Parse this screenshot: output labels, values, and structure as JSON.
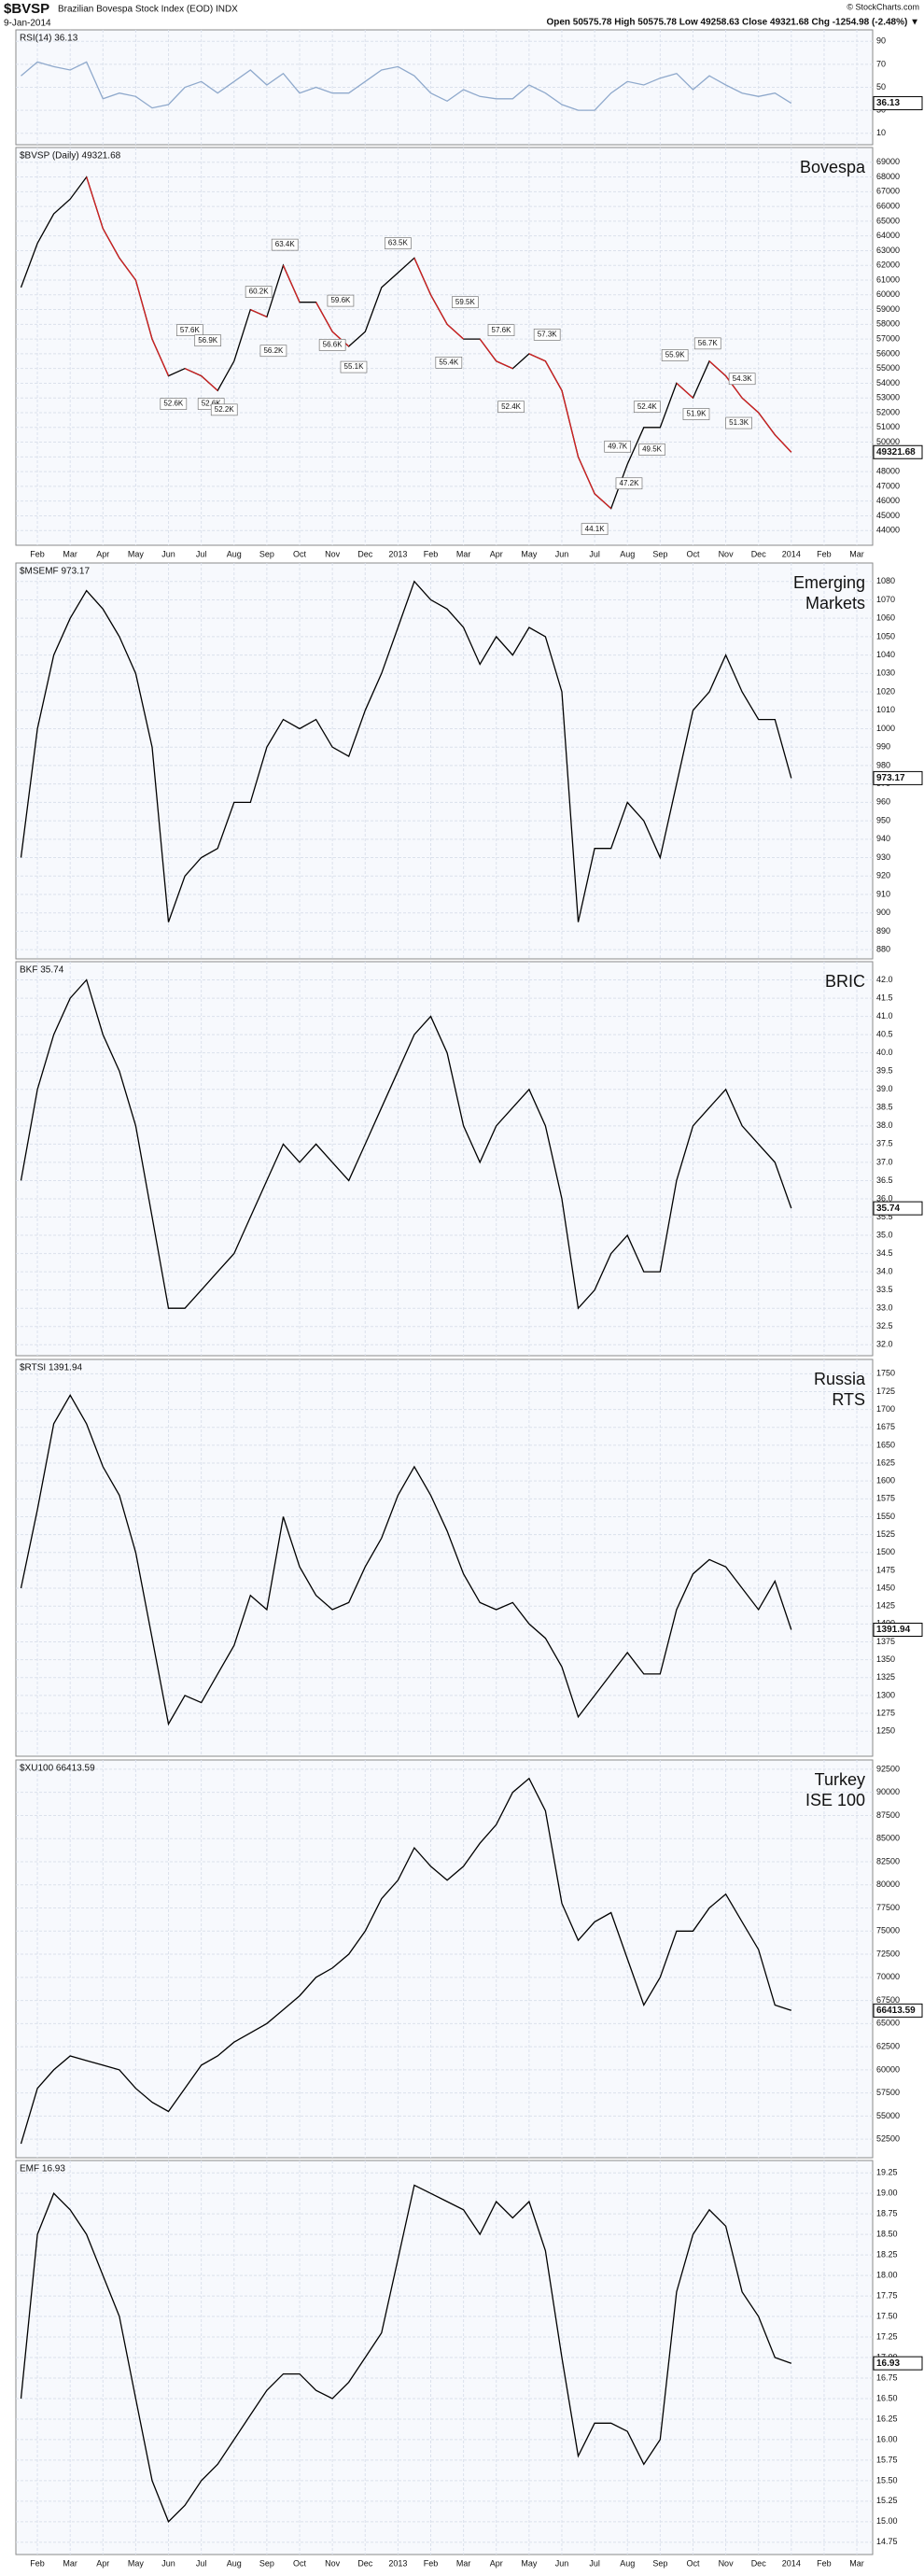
{
  "header": {
    "symbol": "$BVSP",
    "name": "Brazilian Bovespa Stock Index (EOD) INDX",
    "date": "9-Jan-2014",
    "quote": "Open 50575.78 High 50575.78 Low 49258.63 Close 49321.68 Chg -1254.98 (-2.48%) ▼",
    "copyright": "© StockCharts.com"
  },
  "chart_data": [
    {
      "type": "line",
      "title": "RSI(14) 36.13",
      "color": "#8fa9cc",
      "grid": true,
      "x_labels": false,
      "categories": [
        null,
        "Feb",
        null,
        "Mar",
        null,
        "Apr",
        null,
        "May",
        null,
        "Jun",
        null,
        "Jul",
        null,
        "Aug",
        null,
        "Sep",
        null,
        "Oct",
        null,
        "Nov",
        null,
        "Dec",
        null,
        "2013",
        null,
        "Feb",
        null,
        "Mar",
        null,
        "Apr",
        null,
        "May",
        null,
        "Jun",
        null,
        "Jul",
        null,
        "Aug",
        null,
        "Sep",
        null,
        "Oct",
        null,
        "Nov",
        null,
        "Dec",
        null,
        "2014",
        null,
        "Feb",
        null,
        "Mar",
        null
      ],
      "values": [
        60,
        72,
        68,
        65,
        72,
        40,
        45,
        42,
        32,
        35,
        50,
        55,
        45,
        55,
        65,
        52,
        62,
        45,
        50,
        45,
        45,
        55,
        65,
        68,
        60,
        45,
        38,
        48,
        42,
        40,
        40,
        52,
        45,
        35,
        30,
        30,
        45,
        55,
        52,
        58,
        62,
        48,
        60,
        52,
        45,
        42,
        45,
        36.13,
        null,
        null,
        null,
        null,
        null
      ],
      "ylim": [
        0,
        100
      ],
      "yticks": [
        90,
        70,
        50,
        30,
        10
      ]
    },
    {
      "type": "line",
      "title": "$BVSP (Daily) 49321.68",
      "label": [
        "Bovespa"
      ],
      "color": "#000000",
      "down_color": "#d42020",
      "grid": true,
      "x_labels": true,
      "categories": [
        null,
        "Feb",
        null,
        "Mar",
        null,
        "Apr",
        null,
        "May",
        null,
        "Jun",
        null,
        "Jul",
        null,
        "Aug",
        null,
        "Sep",
        null,
        "Oct",
        null,
        "Nov",
        null,
        "Dec",
        null,
        "2013",
        null,
        "Feb",
        null,
        "Mar",
        null,
        "Apr",
        null,
        "May",
        null,
        "Jun",
        null,
        "Jul",
        null,
        "Aug",
        null,
        "Sep",
        null,
        "Oct",
        null,
        "Nov",
        null,
        "Dec",
        null,
        "2014",
        null,
        "Feb",
        null,
        "Mar",
        null
      ],
      "values": [
        60500,
        63500,
        65500,
        66500,
        68000,
        64500,
        62500,
        61000,
        57000,
        54500,
        55000,
        54500,
        53500,
        55500,
        59000,
        58500,
        62000,
        59500,
        59500,
        57500,
        56500,
        57500,
        60500,
        61500,
        62500,
        60000,
        58000,
        57000,
        57000,
        55500,
        55000,
        56000,
        55500,
        53500,
        49000,
        46500,
        45500,
        48500,
        51000,
        51000,
        54000,
        53000,
        55500,
        54500,
        53000,
        52000,
        50500,
        49321.68,
        null,
        null,
        null,
        null,
        null
      ],
      "ylim": [
        43000,
        70000
      ],
      "yticks": [
        44000,
        45000,
        46000,
        47000,
        48000,
        49000,
        50000,
        51000,
        52000,
        53000,
        54000,
        55000,
        56000,
        57000,
        58000,
        59000,
        60000,
        61000,
        62000,
        63000,
        64000,
        65000,
        66000,
        67000,
        68000,
        69000
      ],
      "annotations": [
        {
          "x": 9.3,
          "value": 52600,
          "label": "52.6K"
        },
        {
          "x": 10.3,
          "value": 57600,
          "label": "57.6K"
        },
        {
          "x": 11.4,
          "value": 56900,
          "label": "56.9K"
        },
        {
          "x": 11.6,
          "value": 52600,
          "label": "52.6K"
        },
        {
          "x": 12.4,
          "value": 52200,
          "label": "52.2K"
        },
        {
          "x": 14.5,
          "value": 60200,
          "label": "60.2K"
        },
        {
          "x": 15.4,
          "value": 56200,
          "label": "56.2K"
        },
        {
          "x": 16.1,
          "value": 63400,
          "label": "63.4K"
        },
        {
          "x": 19.5,
          "value": 59600,
          "label": "59.6K"
        },
        {
          "x": 19.0,
          "value": 56600,
          "label": "56.6K"
        },
        {
          "x": 20.3,
          "value": 55100,
          "label": "55.1K"
        },
        {
          "x": 23.0,
          "value": 63500,
          "label": "63.5K"
        },
        {
          "x": 27.1,
          "value": 59500,
          "label": "59.5K"
        },
        {
          "x": 26.1,
          "value": 55400,
          "label": "55.4K"
        },
        {
          "x": 29.3,
          "value": 57600,
          "label": "57.6K"
        },
        {
          "x": 32.1,
          "value": 57300,
          "label": "57.3K"
        },
        {
          "x": 29.9,
          "value": 52400,
          "label": "52.4K"
        },
        {
          "x": 35.0,
          "value": 44100,
          "label": "44.1K"
        },
        {
          "x": 37.1,
          "value": 47200,
          "label": "47.2K"
        },
        {
          "x": 36.4,
          "value": 49700,
          "label": "49.7K"
        },
        {
          "x": 38.5,
          "value": 49500,
          "label": "49.5K"
        },
        {
          "x": 38.2,
          "value": 52400,
          "label": "52.4K"
        },
        {
          "x": 39.9,
          "value": 55900,
          "label": "55.9K"
        },
        {
          "x": 41.2,
          "value": 51900,
          "label": "51.9K"
        },
        {
          "x": 41.9,
          "value": 56700,
          "label": "56.7K"
        },
        {
          "x": 44.0,
          "value": 54300,
          "label": "54.3K"
        },
        {
          "x": 43.8,
          "value": 51300,
          "label": "51.3K"
        }
      ]
    },
    {
      "type": "line",
      "title": "$MSEMF 973.17",
      "label": [
        "Emerging",
        "Markets"
      ],
      "color": "#000000",
      "grid": true,
      "x_labels": false,
      "categories": [
        null,
        "Feb",
        null,
        "Mar",
        null,
        "Apr",
        null,
        "May",
        null,
        "Jun",
        null,
        "Jul",
        null,
        "Aug",
        null,
        "Sep",
        null,
        "Oct",
        null,
        "Nov",
        null,
        "Dec",
        null,
        "2013",
        null,
        "Feb",
        null,
        "Mar",
        null,
        "Apr",
        null,
        "May",
        null,
        "Jun",
        null,
        "Jul",
        null,
        "Aug",
        null,
        "Sep",
        null,
        "Oct",
        null,
        "Nov",
        null,
        "Dec",
        null,
        "2014",
        null,
        "Feb",
        null,
        "Mar",
        null
      ],
      "values": [
        930,
        1000,
        1040,
        1060,
        1075,
        1065,
        1050,
        1030,
        990,
        895,
        920,
        930,
        935,
        960,
        960,
        990,
        1005,
        1000,
        1005,
        990,
        985,
        1010,
        1030,
        1055,
        1080,
        1070,
        1065,
        1055,
        1035,
        1050,
        1040,
        1055,
        1050,
        1020,
        895,
        935,
        935,
        960,
        950,
        930,
        970,
        1010,
        1020,
        1040,
        1020,
        1005,
        1005,
        973.17,
        null,
        null,
        null,
        null,
        null
      ],
      "ylim": [
        875,
        1090
      ],
      "yticks": [
        880,
        890,
        900,
        910,
        920,
        930,
        940,
        950,
        960,
        970,
        980,
        990,
        1000,
        1010,
        1020,
        1030,
        1040,
        1050,
        1060,
        1070,
        1080
      ]
    },
    {
      "type": "line",
      "title": "BKF 35.74",
      "label": [
        "BRIC"
      ],
      "color": "#000000",
      "grid": true,
      "x_labels": false,
      "categories": [
        null,
        "Feb",
        null,
        "Mar",
        null,
        "Apr",
        null,
        "May",
        null,
        "Jun",
        null,
        "Jul",
        null,
        "Aug",
        null,
        "Sep",
        null,
        "Oct",
        null,
        "Nov",
        null,
        "Dec",
        null,
        "2013",
        null,
        "Feb",
        null,
        "Mar",
        null,
        "Apr",
        null,
        "May",
        null,
        "Jun",
        null,
        "Jul",
        null,
        "Aug",
        null,
        "Sep",
        null,
        "Oct",
        null,
        "Nov",
        null,
        "Dec",
        null,
        "2014",
        null,
        "Feb",
        null,
        "Mar",
        null
      ],
      "values": [
        36.5,
        39,
        40.5,
        41.5,
        42,
        40.5,
        39.5,
        38,
        35.5,
        33,
        33,
        33.5,
        34,
        34.5,
        35.5,
        36.5,
        37.5,
        37,
        37.5,
        37,
        36.5,
        37.5,
        38.5,
        39.5,
        40.5,
        41,
        40,
        38,
        37,
        38,
        38.5,
        39,
        38,
        36,
        33,
        33.5,
        34.5,
        35,
        34,
        34,
        36.5,
        38,
        38.5,
        39,
        38,
        37.5,
        37,
        35.74,
        null,
        null,
        null,
        null,
        null
      ],
      "ylim": [
        31.7,
        42.5
      ],
      "yticks": [
        {
          "value": 32,
          "label": "32.0"
        },
        32.5,
        {
          "value": 33,
          "label": "33.0"
        },
        33.5,
        {
          "value": 34,
          "label": "34.0"
        },
        34.5,
        {
          "value": 35,
          "label": "35.0"
        },
        35.5,
        {
          "value": 36,
          "label": "36.0"
        },
        36.5,
        {
          "value": 37,
          "label": "37.0"
        },
        37.5,
        {
          "value": 38,
          "label": "38.0"
        },
        38.5,
        {
          "value": 39,
          "label": "39.0"
        },
        39.5,
        {
          "value": 40,
          "label": "40.0"
        },
        40.5,
        {
          "value": 41,
          "label": "41.0"
        },
        41.5,
        {
          "value": 42,
          "label": "42.0"
        }
      ]
    },
    {
      "type": "line",
      "title": "$RTSI 1391.94",
      "label": [
        "Russia",
        "RTS"
      ],
      "color": "#000000",
      "grid": true,
      "x_labels": false,
      "categories": [
        null,
        "Feb",
        null,
        "Mar",
        null,
        "Apr",
        null,
        "May",
        null,
        "Jun",
        null,
        "Jul",
        null,
        "Aug",
        null,
        "Sep",
        null,
        "Oct",
        null,
        "Nov",
        null,
        "Dec",
        null,
        "2013",
        null,
        "Feb",
        null,
        "Mar",
        null,
        "Apr",
        null,
        "May",
        null,
        "Jun",
        null,
        "Jul",
        null,
        "Aug",
        null,
        "Sep",
        null,
        "Oct",
        null,
        "Nov",
        null,
        "Dec",
        null,
        "2014",
        null,
        "Feb",
        null,
        "Mar",
        null
      ],
      "values": [
        1450,
        1560,
        1680,
        1720,
        1680,
        1620,
        1580,
        1500,
        1380,
        1260,
        1300,
        1290,
        1330,
        1370,
        1440,
        1420,
        1550,
        1480,
        1440,
        1420,
        1430,
        1480,
        1520,
        1580,
        1620,
        1580,
        1530,
        1470,
        1430,
        1420,
        1430,
        1400,
        1380,
        1340,
        1270,
        1300,
        1330,
        1360,
        1330,
        1330,
        1420,
        1470,
        1490,
        1480,
        1450,
        1420,
        1460,
        1391.94,
        null,
        null,
        null,
        null,
        null
      ],
      "ylim": [
        1215,
        1770
      ],
      "yticks": [
        1250,
        1275,
        1300,
        1325,
        1350,
        1375,
        1400,
        1425,
        1450,
        1475,
        1500,
        1525,
        1550,
        1575,
        1600,
        1625,
        1650,
        1675,
        1700,
        1725,
        1750
      ]
    },
    {
      "type": "line",
      "title": "$XU100 66413.59",
      "label": [
        "Turkey",
        "ISE 100"
      ],
      "color": "#000000",
      "grid": true,
      "x_labels": false,
      "categories": [
        null,
        "Feb",
        null,
        "Mar",
        null,
        "Apr",
        null,
        "May",
        null,
        "Jun",
        null,
        "Jul",
        null,
        "Aug",
        null,
        "Sep",
        null,
        "Oct",
        null,
        "Nov",
        null,
        "Dec",
        null,
        "2013",
        null,
        "Feb",
        null,
        "Mar",
        null,
        "Apr",
        null,
        "May",
        null,
        "Jun",
        null,
        "Jul",
        null,
        "Aug",
        null,
        "Sep",
        null,
        "Oct",
        null,
        "Nov",
        null,
        "Dec",
        null,
        "2014",
        null,
        "Feb",
        null,
        "Mar",
        null
      ],
      "values": [
        52000,
        58000,
        60000,
        61500,
        61000,
        60500,
        60000,
        58000,
        56500,
        55500,
        58000,
        60500,
        61500,
        63000,
        64000,
        65000,
        66500,
        68000,
        70000,
        71000,
        72500,
        75000,
        78500,
        80500,
        84000,
        82000,
        80500,
        82000,
        84500,
        86500,
        90000,
        91500,
        88000,
        78000,
        74000,
        76000,
        77000,
        72000,
        67000,
        70000,
        75000,
        75000,
        77500,
        79000,
        76000,
        73000,
        67000,
        66413.59,
        null,
        null,
        null,
        null,
        null
      ],
      "ylim": [
        50500,
        93500
      ],
      "yticks": [
        52500,
        55000,
        57500,
        60000,
        62500,
        65000,
        67500,
        70000,
        72500,
        75000,
        77500,
        80000,
        82500,
        85000,
        87500,
        90000,
        92500
      ]
    },
    {
      "type": "line",
      "title": "EMF 16.93",
      "color": "#000000",
      "grid": true,
      "x_labels": true,
      "categories": [
        null,
        "Feb",
        null,
        "Mar",
        null,
        "Apr",
        null,
        "May",
        null,
        "Jun",
        null,
        "Jul",
        null,
        "Aug",
        null,
        "Sep",
        null,
        "Oct",
        null,
        "Nov",
        null,
        "Dec",
        null,
        "2013",
        null,
        "Feb",
        null,
        "Mar",
        null,
        "Apr",
        null,
        "May",
        null,
        "Jun",
        null,
        "Jul",
        null,
        "Aug",
        null,
        "Sep",
        null,
        "Oct",
        null,
        "Nov",
        null,
        "Dec",
        null,
        "2014",
        null,
        "Feb",
        null,
        "Mar",
        null
      ],
      "values": [
        16.5,
        18.5,
        19,
        18.8,
        18.5,
        18,
        17.5,
        16.5,
        15.5,
        15,
        15.2,
        15.5,
        15.7,
        16,
        16.3,
        16.6,
        16.8,
        16.8,
        16.6,
        16.5,
        16.7,
        17,
        17.3,
        18.2,
        19.1,
        19,
        18.9,
        18.8,
        18.5,
        18.9,
        18.7,
        18.9,
        18.3,
        17,
        15.8,
        16.2,
        16.2,
        16.1,
        15.7,
        16,
        17.8,
        18.5,
        18.8,
        18.6,
        17.8,
        17.5,
        17,
        16.93,
        null,
        null,
        null,
        null,
        null
      ],
      "ylim": [
        14.6,
        19.4
      ],
      "yticks": [
        14.75,
        {
          "value": 15,
          "label": "15.00"
        },
        15.25,
        {
          "value": 15.5,
          "label": "15.50"
        },
        15.75,
        {
          "value": 16,
          "label": "16.00"
        },
        16.25,
        {
          "value": 16.5,
          "label": "16.50"
        },
        16.75,
        {
          "value": 17,
          "label": "17.00"
        },
        17.25,
        {
          "value": 17.5,
          "label": "17.50"
        },
        17.75,
        {
          "value": 18,
          "label": "18.00"
        },
        18.25,
        {
          "value": 18.5,
          "label": "18.50"
        },
        18.75,
        {
          "value": 19,
          "label": "19.00"
        },
        19.25
      ]
    }
  ]
}
